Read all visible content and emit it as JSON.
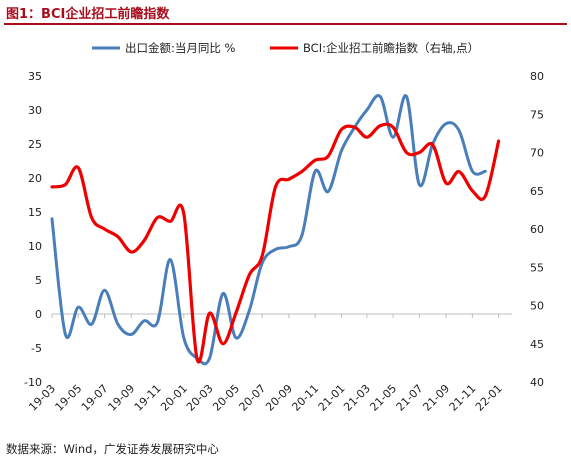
{
  "figure_title": "图1：BCI企业招工前瞻指数",
  "source_note": "数据来源：Wind，广发证券发展研究中心",
  "colors": {
    "title": "#a80d1c",
    "series_export": "#4a7ebb",
    "series_bci": "#ee0000",
    "axis": "#bfbfbf"
  },
  "chart_data": {
    "type": "line",
    "title": "",
    "x_tick_labels": [
      "19-03",
      "19-05",
      "19-07",
      "19-09",
      "19-11",
      "20-01",
      "20-03",
      "20-05",
      "20-07",
      "20-09",
      "20-11",
      "21-01",
      "21-03",
      "21-05",
      "21-07",
      "21-09",
      "21-11",
      "22-01"
    ],
    "y_left": {
      "min": -10,
      "max": 35,
      "step": 5,
      "ticks": [
        "35",
        "30",
        "25",
        "20",
        "15",
        "10",
        "5",
        "0",
        "-5",
        "-10"
      ]
    },
    "y_right": {
      "min": 40,
      "max": 80,
      "step": 5,
      "ticks": [
        "80",
        "75",
        "70",
        "65",
        "60",
        "55",
        "50",
        "45",
        "40"
      ]
    },
    "legend_position": "top",
    "grid": false,
    "series": [
      {
        "name": "出口金额:当月同比 %",
        "axis": "left",
        "color": "#4a7ebb",
        "x": [
          "2019-03",
          "2019-04",
          "2019-05",
          "2019-06",
          "2019-07",
          "2019-08",
          "2019-09",
          "2019-10",
          "2019-11",
          "2019-12",
          "2020-01",
          "2020-02",
          "2020-03",
          "2020-04",
          "2020-05",
          "2020-06",
          "2020-07",
          "2020-08",
          "2020-09",
          "2020-10",
          "2020-11",
          "2020-12",
          "2021-01",
          "2021-02",
          "2021-03",
          "2021-04",
          "2021-05",
          "2021-06",
          "2021-07",
          "2021-08",
          "2021-09",
          "2021-10",
          "2021-11",
          "2021-12"
        ],
        "values": [
          14.0,
          -3.0,
          1.0,
          -1.5,
          3.5,
          -1.5,
          -3.0,
          -1.0,
          -1.2,
          8.0,
          -3.5,
          -6.5,
          -6.5,
          3.0,
          -3.5,
          0.5,
          7.5,
          9.5,
          9.9,
          11.5,
          21.0,
          18.0,
          24.0,
          27.5,
          30.0,
          32.0,
          26.0,
          32.0,
          19.0,
          25.0,
          28.0,
          27.0,
          21.0,
          21.0
        ]
      },
      {
        "name": "BCI:企业招工前瞻指数（右轴,点）",
        "axis": "right",
        "color": "#ee0000",
        "x": [
          "2019-03",
          "2019-04",
          "2019-05",
          "2019-06",
          "2019-07",
          "2019-08",
          "2019-09",
          "2019-10",
          "2019-11",
          "2019-12",
          "2020-01",
          "2020-02",
          "2020-03",
          "2020-04",
          "2020-05",
          "2020-06",
          "2020-07",
          "2020-08",
          "2020-09",
          "2020-10",
          "2020-11",
          "2020-12",
          "2021-01",
          "2021-02",
          "2021-03",
          "2021-04",
          "2021-05",
          "2021-06",
          "2021-07",
          "2021-08",
          "2021-09",
          "2021-10",
          "2021-11",
          "2021-12",
          "2022-01"
        ],
        "values": [
          65.5,
          65.8,
          68.0,
          61.5,
          60.0,
          59.0,
          57.0,
          58.5,
          61.5,
          61.0,
          62.0,
          43.0,
          49.0,
          45.0,
          49.0,
          54.0,
          56.5,
          65.5,
          66.5,
          67.5,
          69.0,
          69.5,
          73.0,
          73.3,
          72.0,
          73.5,
          73.3,
          70.0,
          70.0,
          71.0,
          66.0,
          67.5,
          65.0,
          64.3,
          71.5
        ]
      }
    ]
  }
}
